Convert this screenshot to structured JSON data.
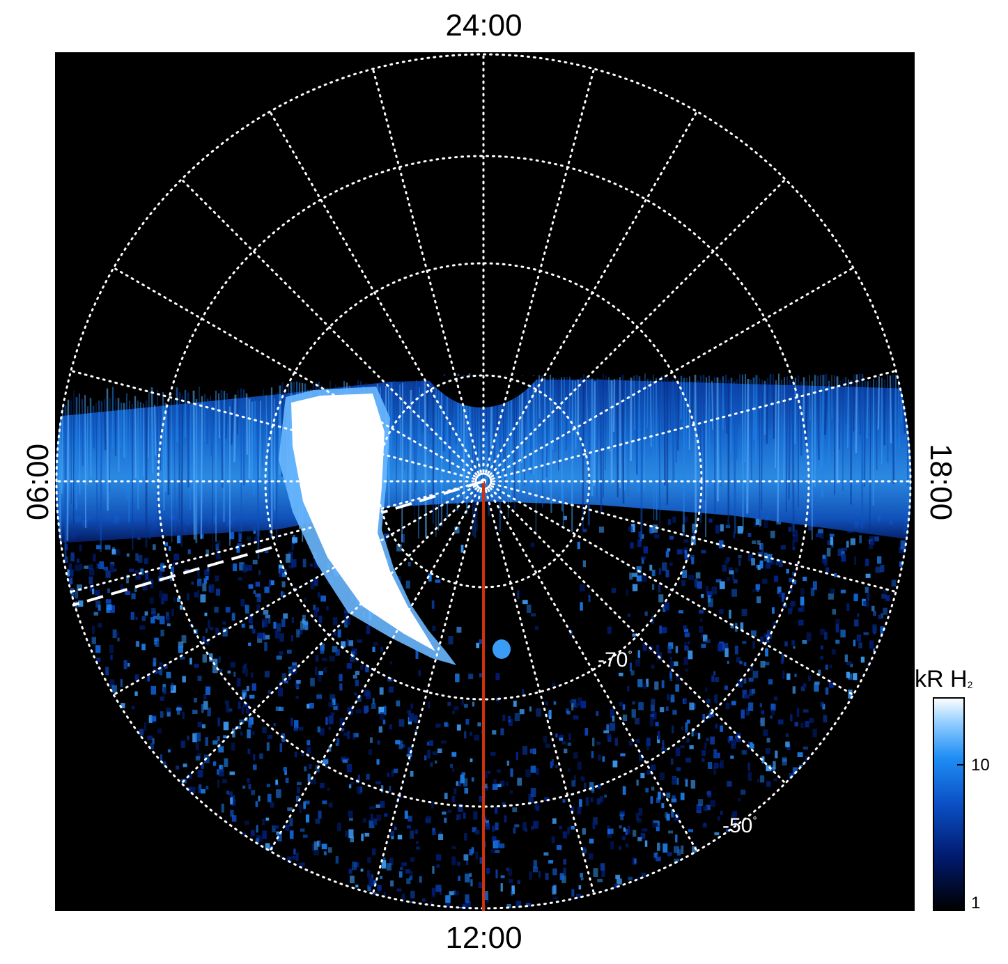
{
  "labels": {
    "top": "24:00",
    "bottom": "12:00",
    "left": "06:00",
    "right": "18:00"
  },
  "latitude_labels": [
    {
      "text": "-70",
      "deg": "°"
    },
    {
      "text": "-50",
      "deg": "°"
    }
  ],
  "colorbar": {
    "title_main": "kR H",
    "title_sub": "2",
    "tick_high": "10",
    "tick_low": "1"
  },
  "colors": {
    "background": "#000000",
    "grid": "#ffffff",
    "meridian": "#d0300a",
    "emission_low": "#00124f",
    "emission_mid": "#1a7df0",
    "emission_high": "#ffffff"
  }
}
